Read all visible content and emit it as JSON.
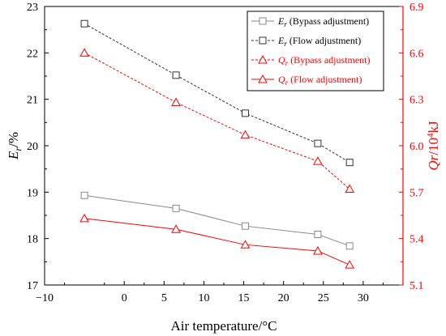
{
  "chart_data": {
    "type": "line",
    "x": [
      -5,
      6.5,
      15.2,
      24.3,
      28.3
    ],
    "xlabel": "Air temperature/°C",
    "xlim": [
      -10,
      35
    ],
    "xticks": [
      "−10",
      "0",
      "5",
      "10",
      "15",
      "20",
      "25",
      "30"
    ],
    "xtick_values": [
      -10,
      0,
      5,
      10,
      15,
      20,
      25,
      30
    ],
    "ylabel_left": {
      "main": "E",
      "sub": "r",
      "suffix": "/%"
    },
    "ylim_left": [
      17,
      23
    ],
    "yticks_left": [
      "17",
      "18",
      "19",
      "20",
      "21",
      "22",
      "23"
    ],
    "ylabel_right": {
      "main": "Qr",
      "suffix": "/10",
      "sup": "4",
      "unit": "kJ"
    },
    "ylim_right": [
      5.1,
      6.9
    ],
    "yticks_right": [
      "5.1",
      "5.4",
      "5.7",
      "6.0",
      "6.3",
      "6.6",
      "6.9"
    ],
    "right_axis_color": "#ff0000",
    "series": [
      {
        "name": "E_r (Bypass adjustment)",
        "legend_main": "E",
        "legend_sub": "r",
        "legend_rest": " (Bypass adjustment)",
        "axis": "left",
        "values": [
          18.93,
          18.65,
          18.27,
          18.09,
          17.84
        ],
        "color": "#888888",
        "marker": "square",
        "dash": false
      },
      {
        "name": "E_r (Flow adjustment)",
        "legend_main": "E",
        "legend_sub": "r",
        "legend_rest": " (Flow adjustment)",
        "axis": "left",
        "values": [
          22.63,
          21.52,
          20.7,
          20.05,
          19.64
        ],
        "color": "#333333",
        "marker": "square",
        "dash": true
      },
      {
        "name": "Q_r (Bypass adjustment)",
        "legend_main": "Q",
        "legend_sub": "r",
        "legend_rest": " (Bypass adjustment)",
        "axis": "right",
        "values": [
          6.6,
          6.28,
          6.07,
          5.9,
          5.72
        ],
        "color": "#ff0000",
        "marker": "triangle",
        "dash": true
      },
      {
        "name": "Q_r (Flow adjustment)",
        "legend_main": "Q",
        "legend_sub": "r",
        "legend_rest": " (Flow adjustment)",
        "axis": "right",
        "values": [
          5.53,
          5.46,
          5.36,
          5.32,
          5.23
        ],
        "color": "#ff0000",
        "marker": "triangle",
        "dash": false
      }
    ],
    "legend": "top-right",
    "grid": false
  }
}
